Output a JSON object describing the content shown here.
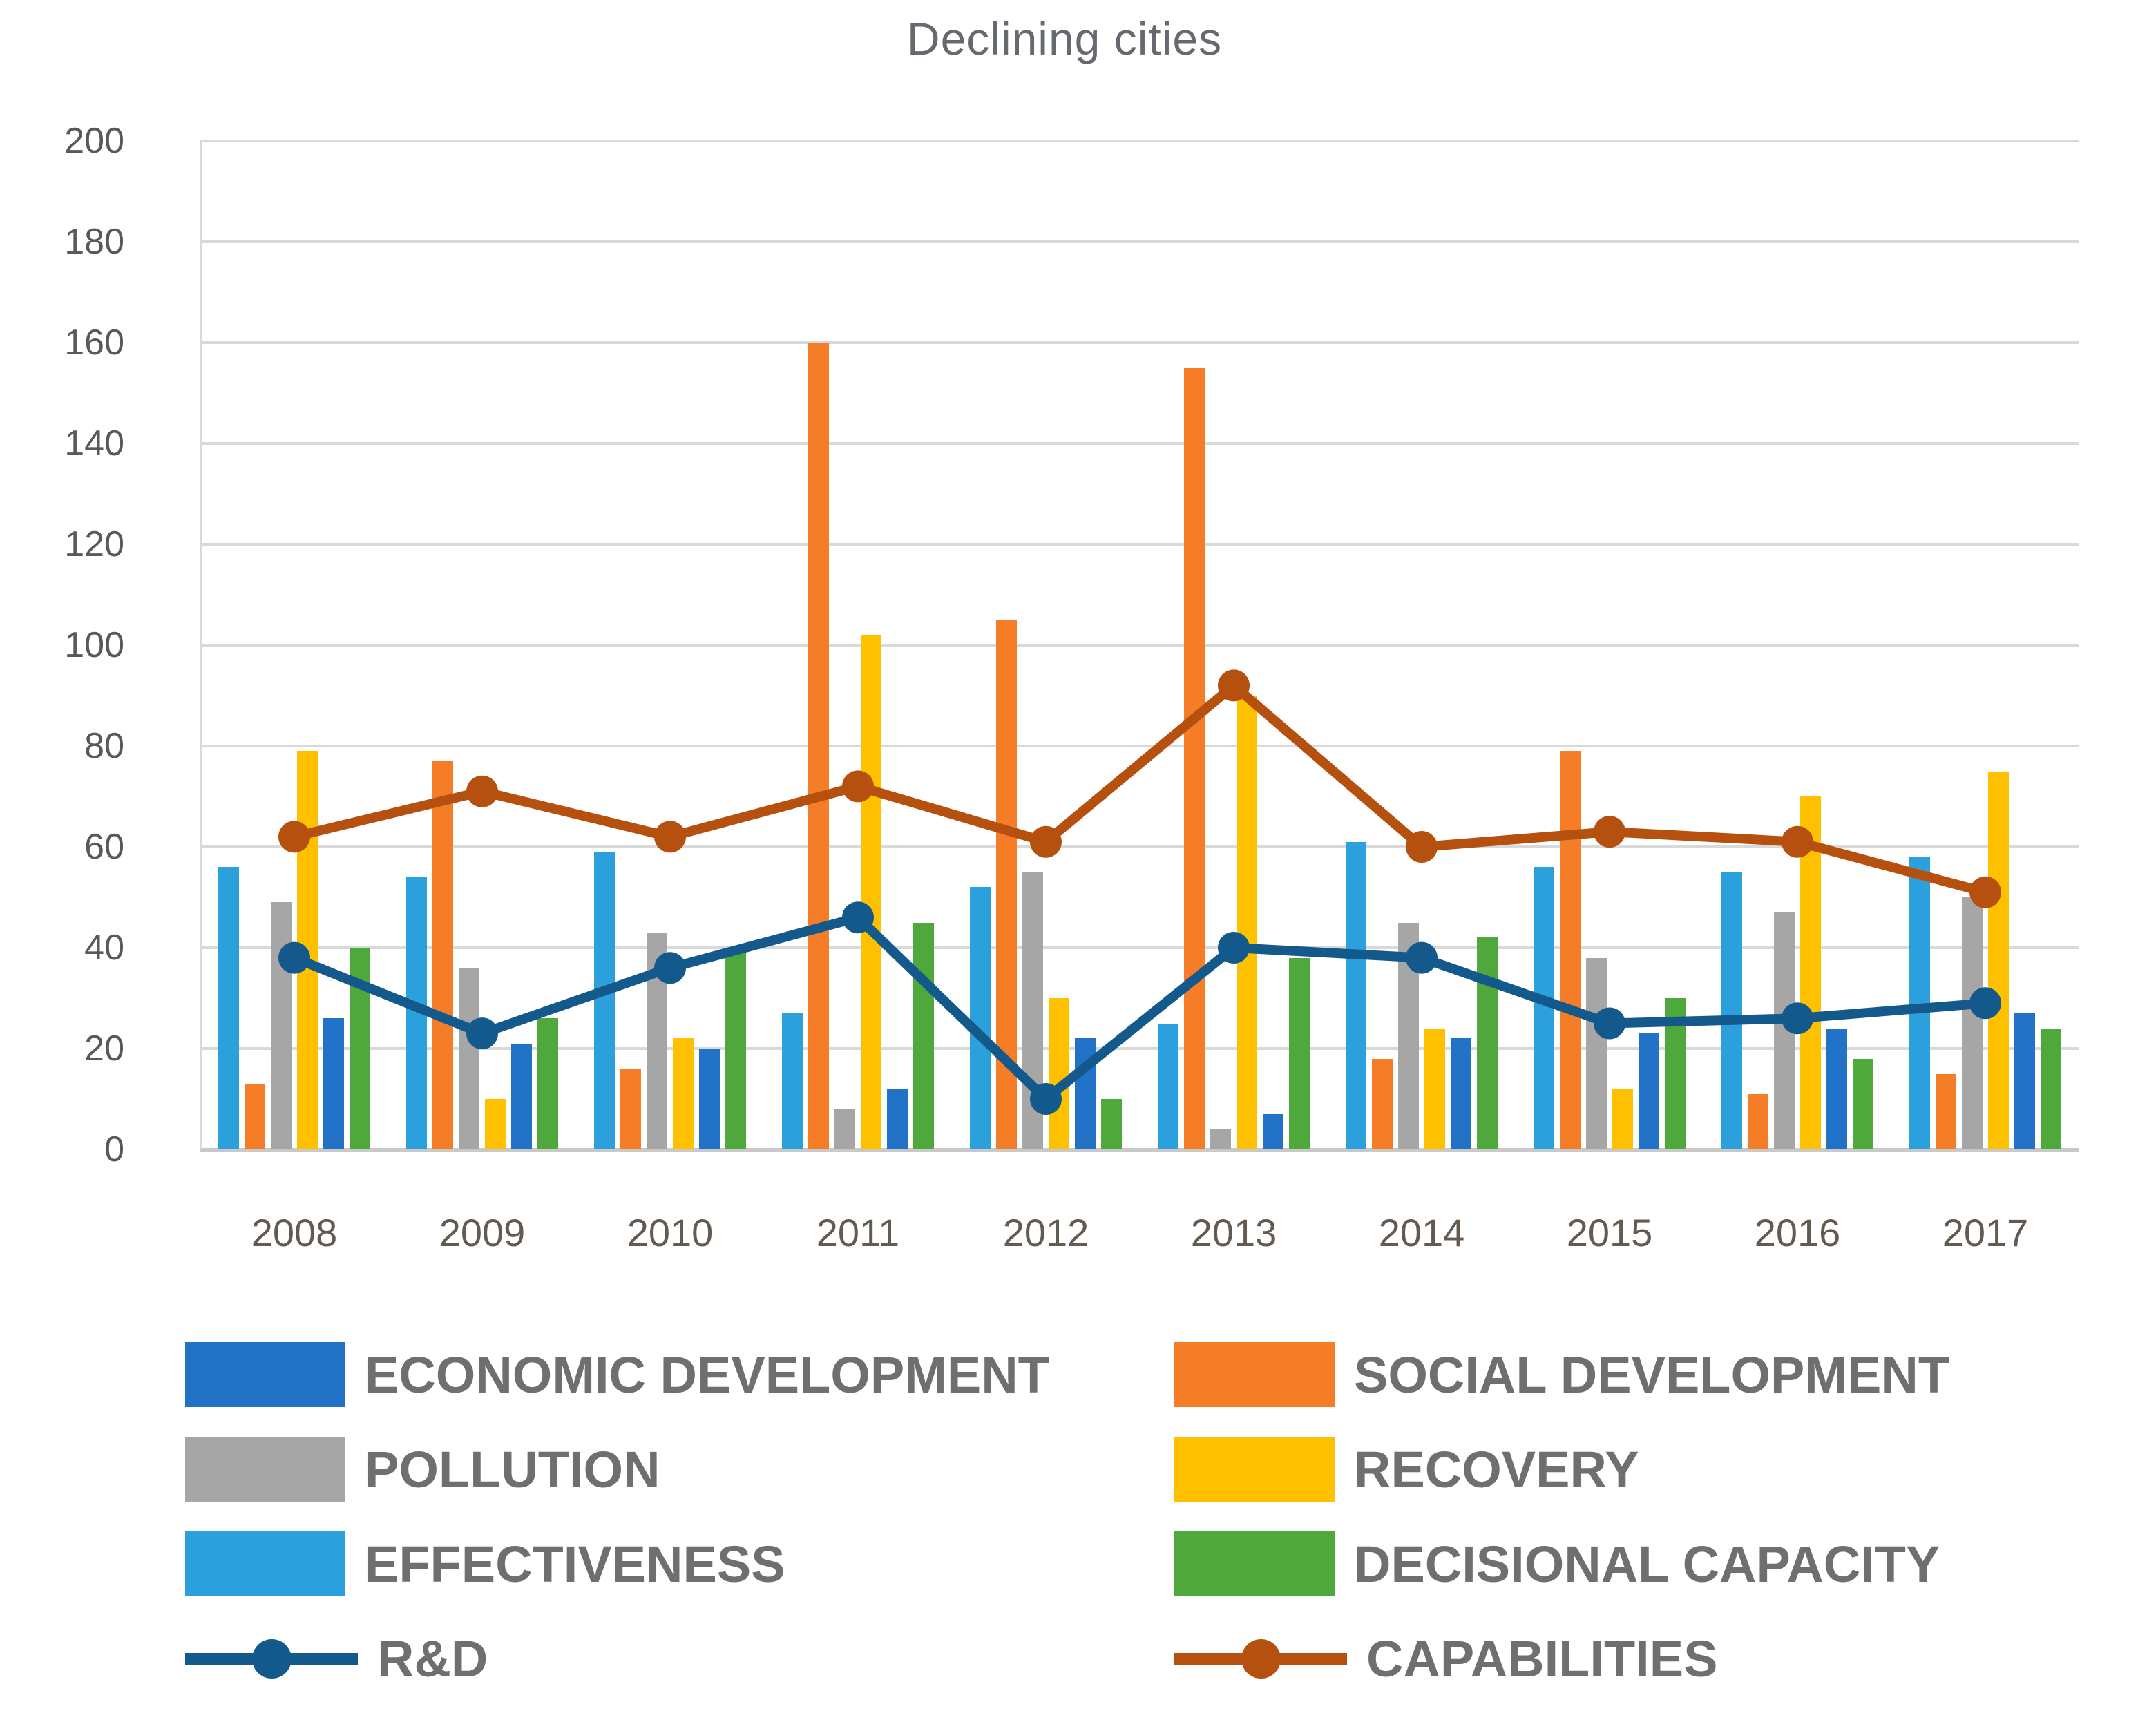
{
  "title": "Declining cities",
  "y_axis": {
    "min": 0,
    "max": 200,
    "step": 20,
    "ticks": [
      "0",
      "20",
      "40",
      "60",
      "80",
      "100",
      "120",
      "140",
      "160",
      "180",
      "200"
    ]
  },
  "x_axis": {
    "categories": [
      "2008",
      "2009",
      "2010",
      "2011",
      "2012",
      "2013",
      "2014",
      "2015",
      "2016",
      "2017"
    ]
  },
  "chart_data": {
    "type": "bar+line",
    "title": "Declining cities",
    "categories": [
      "2008",
      "2009",
      "2010",
      "2011",
      "2012",
      "2013",
      "2014",
      "2015",
      "2016",
      "2017"
    ],
    "ylim": [
      0,
      200
    ],
    "grid": true,
    "legend_position": "bottom",
    "bar_plot_order": [
      "EFFECTIVENESS",
      "SOCIAL DEVELOPMENT",
      "POLLUTION",
      "RECOVERY",
      "ECONOMIC DEVELOPMENT",
      "DECISIONAL CAPACITY"
    ],
    "series": [
      {
        "name": "ECONOMIC DEVELOPMENT",
        "type": "bar",
        "color": "#2272c8",
        "values": [
          26,
          21,
          20,
          12,
          22,
          7,
          22,
          23,
          24,
          27
        ]
      },
      {
        "name": "SOCIAL DEVELOPMENT",
        "type": "bar",
        "color": "#f67d28",
        "values": [
          13,
          77,
          16,
          160,
          105,
          155,
          18,
          79,
          11,
          15
        ]
      },
      {
        "name": "POLLUTION",
        "type": "bar",
        "color": "#a6a6a6",
        "values": [
          49,
          36,
          43,
          8,
          55,
          4,
          45,
          38,
          47,
          50
        ]
      },
      {
        "name": "RECOVERY",
        "type": "bar",
        "color": "#ffc000",
        "values": [
          79,
          10,
          22,
          102,
          30,
          90,
          24,
          12,
          70,
          75
        ]
      },
      {
        "name": "EFFECTIVENESS",
        "type": "bar",
        "color": "#2ba0dc",
        "values": [
          56,
          54,
          59,
          27,
          52,
          25,
          61,
          56,
          55,
          58
        ]
      },
      {
        "name": "DECISIONAL CAPACITY",
        "type": "bar",
        "color": "#4ea83c",
        "values": [
          40,
          26,
          39,
          45,
          10,
          38,
          42,
          30,
          18,
          24
        ]
      },
      {
        "name": "R&D",
        "type": "line",
        "color": "#14598c",
        "values": [
          38,
          23,
          36,
          46,
          10,
          40,
          38,
          25,
          26,
          29
        ]
      },
      {
        "name": "CAPABILITIES",
        "type": "line",
        "color": "#b5500f",
        "values": [
          62,
          71,
          62,
          72,
          61,
          92,
          60,
          63,
          61,
          51
        ]
      }
    ]
  },
  "legend": {
    "items": [
      {
        "label": "ECONOMIC DEVELOPMENT",
        "color": "#2272c8",
        "kind": "bar"
      },
      {
        "label": "SOCIAL DEVELOPMENT",
        "color": "#f67d28",
        "kind": "bar"
      },
      {
        "label": "POLLUTION",
        "color": "#a6a6a6",
        "kind": "bar"
      },
      {
        "label": "RECOVERY",
        "color": "#ffc000",
        "kind": "bar"
      },
      {
        "label": "EFFECTIVENESS",
        "color": "#2ba0dc",
        "kind": "bar"
      },
      {
        "label": "DECISIONAL CAPACITY",
        "color": "#4ea83c",
        "kind": "bar"
      },
      {
        "label": "R&D",
        "color": "#14598c",
        "kind": "line"
      },
      {
        "label": "CAPABILITIES",
        "color": "#b5500f",
        "kind": "line"
      }
    ]
  }
}
